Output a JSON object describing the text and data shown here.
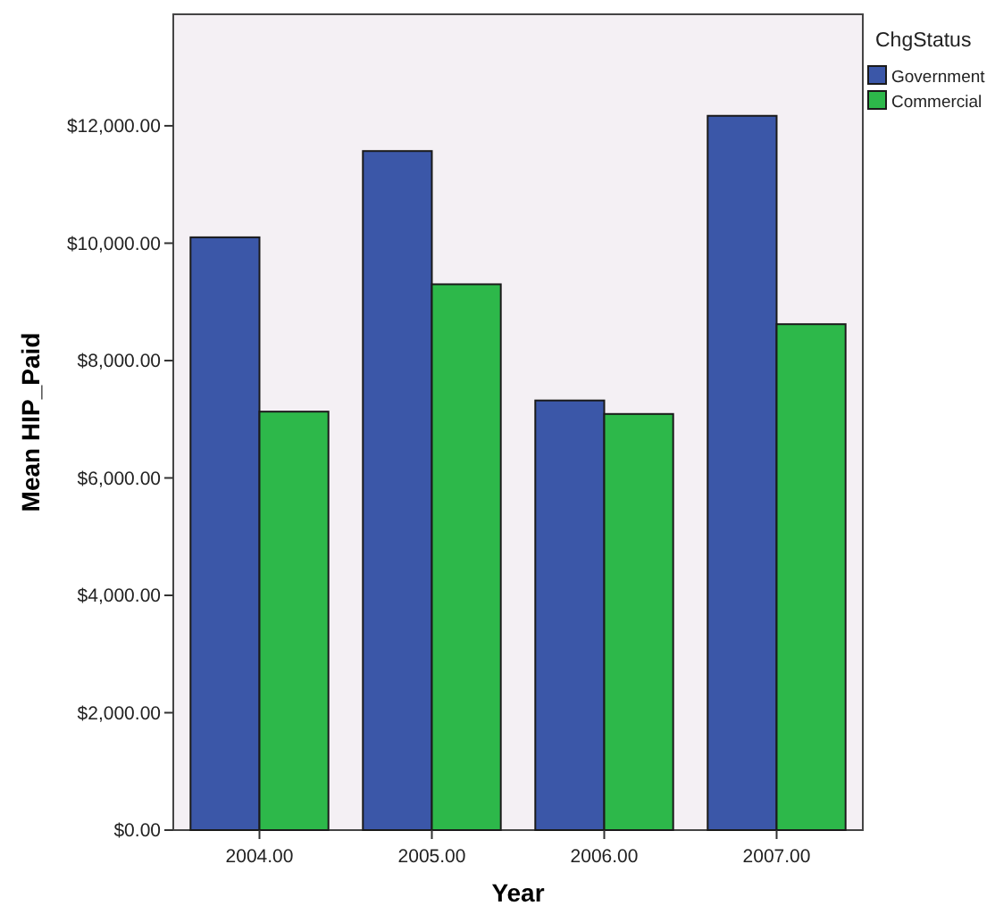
{
  "chart_data": {
    "type": "bar",
    "xlabel": "Year",
    "ylabel": "Mean HIP_Paid",
    "legend_title": "ChgStatus",
    "legend": "right",
    "grid": false,
    "categories": [
      "2004.00",
      "2005.00",
      "2006.00",
      "2007.00"
    ],
    "series": [
      {
        "name": "Government",
        "color": "#3b57a8",
        "values": [
          10100,
          11570,
          7320,
          12170
        ]
      },
      {
        "name": "Commercial",
        "color": "#2db84a",
        "values": [
          7130,
          9300,
          7090,
          8620
        ]
      }
    ],
    "ylim": [
      0,
      13900
    ],
    "yticks": [
      {
        "value": 0,
        "label": "$0.00"
      },
      {
        "value": 2000,
        "label": "$2,000.00"
      },
      {
        "value": 4000,
        "label": "$4,000.00"
      },
      {
        "value": 6000,
        "label": "$6,000.00"
      },
      {
        "value": 8000,
        "label": "$8,000.00"
      },
      {
        "value": 10000,
        "label": "$10,000.00"
      },
      {
        "value": 12000,
        "label": "$12,000.00"
      }
    ]
  }
}
